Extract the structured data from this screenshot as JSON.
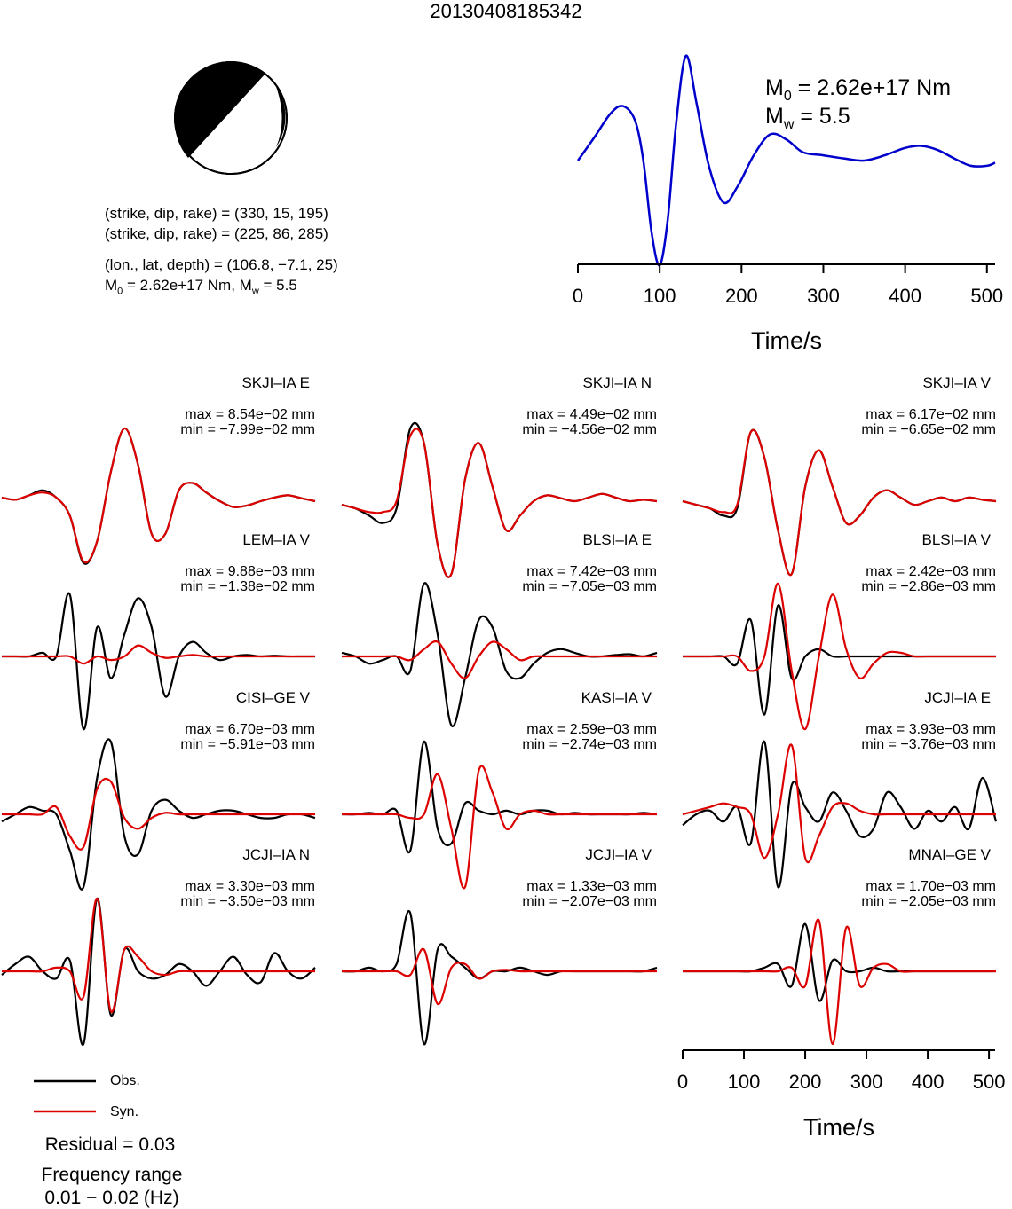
{
  "header": {
    "event_id": "20130408185342"
  },
  "focal_mechanism": {
    "icon": "beachball-icon",
    "colors": {
      "compression": "#000000",
      "dilatation": "#ffffff"
    },
    "line1": "(strike, dip, rake) = (330, 15, 195)",
    "line2": "(strike, dip, rake) = (225, 86, 285)",
    "line3": "(lon., lat, depth) = (106.8, −7.1, 25)",
    "m0_label": "M",
    "m0_sub": "0",
    "m0_value": " = 2.62e+17 Nm, M",
    "mw_sub": "w",
    "mw_value": " = 5.5"
  },
  "moment_rate": {
    "m0_label": "M",
    "m0_sub": "0",
    "m0_value": " = 2.62e+17 Nm",
    "mw_label": "M",
    "mw_sub": "w",
    "mw_value": " = 5.5",
    "color": "#0000cc"
  },
  "legend": {
    "obs_label": "Obs.",
    "syn_label": "Syn.",
    "obs_color": "#000000",
    "syn_color": "#dd0000"
  },
  "footer": {
    "residual": "Residual = 0.03",
    "freq_title": "Frequency range",
    "freq_value": "0.01 − 0.02 (Hz)"
  },
  "chart_data": [
    {
      "type": "line",
      "title": "",
      "xlabel": "Time/s",
      "ylabel": "",
      "xlim": [
        0,
        510
      ],
      "xticks": [
        0,
        100,
        200,
        300,
        400,
        500
      ],
      "series": [
        {
          "color": "#0000cc",
          "x": [
            0,
            20,
            40,
            55,
            70,
            80,
            90,
            100,
            110,
            120,
            132,
            145,
            160,
            178,
            195,
            215,
            235,
            255,
            275,
            300,
            325,
            350,
            375,
            400,
            420,
            440,
            460,
            480,
            500,
            510
          ],
          "y": [
            0.0,
            0.22,
            0.45,
            0.52,
            0.38,
            0.0,
            -0.68,
            -1.0,
            -0.55,
            0.35,
            1.0,
            0.55,
            -0.05,
            -0.4,
            -0.25,
            0.05,
            0.25,
            0.2,
            0.08,
            0.05,
            0.02,
            0.0,
            0.05,
            0.12,
            0.14,
            0.1,
            0.02,
            -0.05,
            -0.05,
            -0.02
          ]
        }
      ]
    },
    {
      "type": "line",
      "xlabel": "Time/s",
      "xlim": [
        0,
        510
      ],
      "xticks": [
        0,
        100,
        200,
        300,
        400,
        500
      ],
      "panels": [
        {
          "station": "SKJI–IA E",
          "max": "max = 8.54e−02 mm",
          "min": "min = −7.99e−02 mm",
          "obs_y": [
            0.05,
            0.02,
            0.08,
            0.15,
            0.05,
            -0.2,
            -0.85,
            -0.55,
            0.4,
            1.0,
            0.5,
            -0.45,
            -0.45,
            0.15,
            0.25,
            0.12,
            0.0,
            -0.08,
            -0.06,
            0.0,
            0.05,
            0.08,
            0.04,
            0.0
          ],
          "syn_y": [
            0.05,
            0.02,
            0.08,
            0.12,
            0.05,
            -0.2,
            -0.83,
            -0.55,
            0.4,
            1.0,
            0.5,
            -0.45,
            -0.45,
            0.15,
            0.25,
            0.12,
            0.0,
            -0.08,
            -0.06,
            0.0,
            0.05,
            0.08,
            0.04,
            0.0
          ]
        },
        {
          "station": "SKJI–IA N",
          "max": "max = 4.49e−02 mm",
          "min": "min = −4.56e−02 mm",
          "obs_y": [
            -0.05,
            -0.1,
            -0.2,
            -0.3,
            -0.1,
            1.0,
            0.8,
            -0.6,
            -1.0,
            0.3,
            0.8,
            0.2,
            -0.4,
            -0.2,
            0.0,
            0.08,
            0.04,
            0.0,
            0.05,
            0.1,
            0.05,
            0.0,
            0.02,
            0.0
          ],
          "syn_y": [
            -0.05,
            -0.1,
            -0.15,
            -0.15,
            0.0,
            0.9,
            0.8,
            -0.6,
            -1.0,
            0.3,
            0.8,
            0.2,
            -0.4,
            -0.2,
            0.0,
            0.08,
            0.04,
            0.0,
            0.05,
            0.1,
            0.05,
            0.0,
            0.02,
            0.0
          ]
        },
        {
          "station": "SKJI–IA V",
          "max": "max = 6.17e−02 mm",
          "min": "min = −6.65e−02 mm",
          "obs_y": [
            0.0,
            -0.05,
            -0.1,
            -0.2,
            -0.1,
            0.95,
            0.6,
            -0.4,
            -1.0,
            0.2,
            0.7,
            0.2,
            -0.3,
            -0.2,
            0.05,
            0.15,
            0.05,
            -0.05,
            0.0,
            0.05,
            0.0,
            0.05,
            0.02,
            0.0
          ],
          "syn_y": [
            0.0,
            -0.05,
            -0.1,
            -0.15,
            -0.05,
            0.95,
            0.6,
            -0.4,
            -1.0,
            0.2,
            0.7,
            0.2,
            -0.3,
            -0.2,
            0.05,
            0.15,
            0.05,
            -0.05,
            0.0,
            0.05,
            0.0,
            0.05,
            0.02,
            0.0
          ]
        },
        {
          "station": "LEM–IA V",
          "max": "max = 9.88e−03 mm",
          "min": "min = −1.38e−02 mm",
          "obs_y": [
            0.0,
            0.0,
            0.0,
            0.05,
            0.0,
            0.85,
            -1.0,
            0.4,
            -0.3,
            0.3,
            0.8,
            0.4,
            -0.55,
            0.0,
            0.2,
            0.05,
            -0.05,
            0.0,
            0.02,
            0.0,
            0.01,
            0.0,
            0.0,
            0.0
          ],
          "syn_y": [
            0.0,
            0.0,
            0.0,
            0.0,
            0.0,
            0.0,
            -0.1,
            0.0,
            -0.05,
            0.0,
            0.15,
            0.05,
            -0.02,
            0.0,
            0.02,
            0.0,
            0.0,
            0.0,
            0.0,
            0.0,
            0.0,
            0.0,
            0.0,
            0.0
          ]
        },
        {
          "station": "BLSI–IA E",
          "max": "max = 7.42e−03 mm",
          "min": "min = −7.05e−03 mm",
          "obs_y": [
            0.05,
            0.0,
            -0.1,
            -0.05,
            0.0,
            -0.2,
            1.0,
            0.3,
            -0.95,
            -0.3,
            0.5,
            0.4,
            -0.2,
            -0.3,
            -0.1,
            0.05,
            0.1,
            0.05,
            0.0,
            0.0,
            0.02,
            0.03,
            0.0,
            0.05
          ],
          "syn_y": [
            0.0,
            0.0,
            0.0,
            0.0,
            0.0,
            -0.05,
            0.1,
            0.2,
            -0.1,
            -0.3,
            0.0,
            0.2,
            0.1,
            -0.05,
            0.0,
            0.0,
            0.0,
            0.0,
            0.0,
            0.0,
            0.0,
            0.0,
            0.0,
            0.0
          ]
        },
        {
          "station": "BLSI–IA V",
          "max": "max = 2.42e−03 mm",
          "min": "min = −2.86e−03 mm",
          "obs_y": [
            0.0,
            0.0,
            0.0,
            0.0,
            -0.1,
            0.5,
            -0.8,
            0.7,
            -0.3,
            0.0,
            0.1,
            0.0,
            0.0,
            0.0,
            0.0,
            0.0,
            0.0,
            0.0,
            0.0,
            0.0,
            0.0,
            0.0,
            0.0,
            0.0
          ],
          "syn_y": [
            0.0,
            0.0,
            0.0,
            0.0,
            0.0,
            -0.2,
            0.0,
            1.0,
            -0.2,
            -1.0,
            0.0,
            0.85,
            0.1,
            -0.3,
            -0.1,
            0.05,
            0.05,
            0.0,
            0.0,
            0.0,
            0.0,
            0.0,
            0.0,
            0.0
          ]
        },
        {
          "station": "CISI–GE V",
          "max": "max = 6.70e−03 mm",
          "min": "min = −5.91e−03 mm",
          "obs_y": [
            -0.1,
            0.0,
            0.1,
            0.05,
            0.0,
            -0.5,
            -1.0,
            0.5,
            1.0,
            -0.3,
            -0.55,
            0.05,
            0.2,
            0.05,
            -0.05,
            0.0,
            0.05,
            0.05,
            0.0,
            -0.05,
            -0.05,
            0.0,
            0.0,
            -0.05
          ],
          "syn_y": [
            0.0,
            0.0,
            0.0,
            0.0,
            0.1,
            -0.3,
            -0.45,
            0.35,
            0.45,
            -0.05,
            -0.2,
            -0.05,
            0.02,
            0.0,
            0.0,
            0.0,
            0.0,
            0.0,
            0.0,
            0.0,
            0.0,
            0.0,
            0.0,
            0.0
          ]
        },
        {
          "station": "KASI–IA V",
          "max": "max = 2.59e−03 mm",
          "min": "min = −2.74e−03 mm",
          "obs_y": [
            0.0,
            0.0,
            0.02,
            0.0,
            0.05,
            -0.5,
            1.0,
            -0.2,
            -0.4,
            0.15,
            0.05,
            0.0,
            0.05,
            0.0,
            0.05,
            0.05,
            0.0,
            0.02,
            0.0,
            0.0,
            0.0,
            0.0,
            0.02,
            0.0
          ],
          "syn_y": [
            0.0,
            0.0,
            0.0,
            0.0,
            0.0,
            -0.05,
            0.0,
            0.55,
            -0.2,
            -1.0,
            0.6,
            0.3,
            -0.2,
            0.0,
            0.05,
            0.0,
            0.0,
            0.0,
            0.0,
            0.0,
            0.0,
            0.0,
            0.0,
            0.0
          ]
        },
        {
          "station": "JCJI–IA E",
          "max": "max = 3.93e−03 mm",
          "min": "min = −3.76e−03 mm",
          "obs_y": [
            -0.15,
            0.0,
            0.05,
            -0.1,
            0.1,
            -0.4,
            1.0,
            -1.0,
            0.4,
            0.1,
            -0.1,
            0.3,
            0.05,
            -0.3,
            -0.2,
            0.3,
            0.1,
            -0.2,
            0.05,
            -0.1,
            0.1,
            -0.2,
            0.5,
            -0.1
          ],
          "syn_y": [
            0.0,
            0.05,
            0.1,
            0.15,
            0.1,
            0.0,
            -0.6,
            0.0,
            0.95,
            -0.6,
            -0.3,
            0.1,
            0.15,
            0.05,
            0.0,
            0.0,
            0.0,
            0.0,
            0.0,
            0.0,
            0.0,
            0.0,
            0.0,
            0.0
          ]
        },
        {
          "station": "JCJI–IA N",
          "max": "max = 3.30e−03 mm",
          "min": "min = −3.50e−03 mm",
          "obs_y": [
            -0.05,
            0.1,
            0.2,
            0.0,
            -0.1,
            0.15,
            -1.0,
            1.0,
            -0.6,
            0.3,
            0.0,
            -0.1,
            -0.05,
            0.1,
            0.0,
            -0.2,
            0.0,
            0.2,
            -0.05,
            -0.15,
            0.25,
            0.0,
            -0.1,
            0.05
          ],
          "syn_y": [
            0.0,
            0.0,
            0.0,
            0.0,
            0.05,
            0.0,
            -0.35,
            1.0,
            -0.55,
            0.3,
            0.2,
            0.0,
            -0.05,
            0.0,
            0.0,
            0.0,
            0.0,
            0.0,
            0.0,
            0.0,
            0.0,
            0.0,
            0.0,
            0.0
          ]
        },
        {
          "station": "JCJI–IA V",
          "max": "max = 1.33e−03 mm",
          "min": "min = −2.07e−03 mm",
          "obs_y": [
            0.0,
            0.0,
            0.05,
            0.0,
            0.1,
            0.8,
            -1.0,
            0.3,
            0.2,
            0.05,
            -0.1,
            0.0,
            0.0,
            0.05,
            0.0,
            -0.05,
            0.0,
            0.0,
            0.0,
            0.0,
            0.0,
            0.0,
            0.0,
            0.05
          ],
          "syn_y": [
            0.0,
            0.0,
            0.0,
            0.0,
            0.0,
            -0.05,
            0.3,
            -0.45,
            0.05,
            0.1,
            -0.1,
            0.0,
            0.02,
            0.0,
            0.0,
            0.0,
            0.0,
            0.0,
            0.0,
            0.0,
            0.0,
            0.0,
            0.0,
            0.0
          ]
        },
        {
          "station": "MNAI–GE V",
          "max": "max = 1.70e−03 mm",
          "min": "min = −2.05e−03 mm",
          "obs_y": [
            0.0,
            0.0,
            0.0,
            0.0,
            0.0,
            0.0,
            0.05,
            0.1,
            -0.2,
            0.65,
            -0.4,
            0.15,
            0.0,
            0.0,
            0.05,
            0.0,
            0.0,
            0.0,
            0.0,
            0.0,
            0.0,
            0.0,
            0.0,
            0.0
          ],
          "syn_y": [
            0.0,
            0.0,
            0.0,
            0.0,
            0.0,
            0.0,
            0.0,
            0.0,
            0.05,
            -0.2,
            0.7,
            -1.0,
            0.6,
            -0.2,
            0.05,
            0.1,
            0.0,
            0.0,
            0.0,
            0.0,
            0.0,
            0.0,
            0.0,
            0.0
          ]
        }
      ]
    }
  ]
}
